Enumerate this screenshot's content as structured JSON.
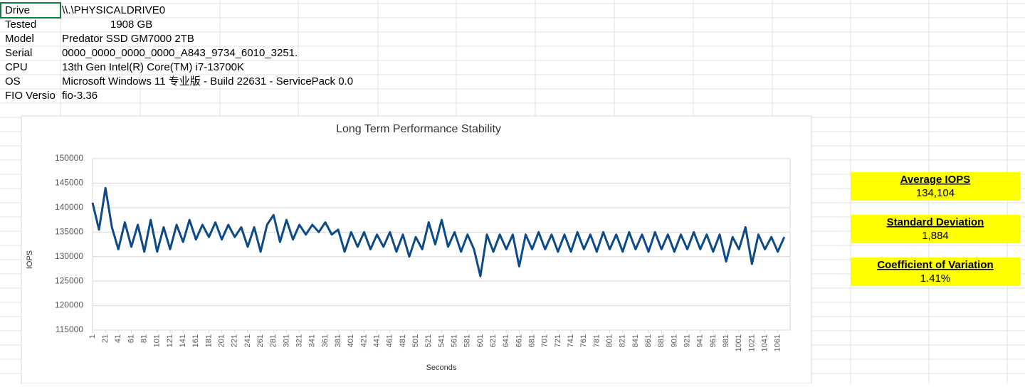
{
  "cells": [
    {
      "label": "Drive",
      "value": "\\\\.\\PHYSICALDRIVE0"
    },
    {
      "label": "Tested",
      "value": "1908 GB"
    },
    {
      "label": "Model",
      "value": "Predator SSD GM7000 2TB"
    },
    {
      "label": "Serial",
      "value": "0000_0000_0000_0000_A843_9734_6010_3251."
    },
    {
      "label": "CPU",
      "value": "13th Gen Intel(R) Core(TM) i7-13700K"
    },
    {
      "label": "OS",
      "value": "Microsoft Windows 11 专业版 - Build 22631 - ServicePack 0.0"
    },
    {
      "label": "FIO Versio",
      "value": "fio-3.36"
    }
  ],
  "stats": [
    {
      "title": "Average IOPS",
      "value": "134,104"
    },
    {
      "title": "Standard Deviation",
      "value": "1,884"
    },
    {
      "title": "Coefficient of Variation",
      "value": "1.41%"
    }
  ],
  "chart_data": {
    "type": "line",
    "title": "Long Term Performance Stability",
    "x_label": "Seconds",
    "y_label": "IOPS",
    "color": "#0d4a8a",
    "grid": true,
    "xlim": [
      1,
      1080
    ],
    "ylim": [
      115000,
      150000
    ],
    "yticks": [
      115000,
      120000,
      125000,
      130000,
      135000,
      140000,
      145000,
      150000
    ],
    "xticks": [
      1,
      21,
      41,
      61,
      81,
      101,
      121,
      141,
      161,
      181,
      201,
      221,
      241,
      261,
      281,
      301,
      321,
      341,
      361,
      381,
      401,
      421,
      441,
      461,
      481,
      501,
      521,
      541,
      561,
      581,
      601,
      621,
      641,
      661,
      681,
      701,
      721,
      741,
      761,
      781,
      801,
      821,
      841,
      861,
      881,
      901,
      921,
      941,
      961,
      981,
      1001,
      1021,
      1041,
      1061
    ],
    "x": [
      1,
      11,
      21,
      31,
      41,
      51,
      61,
      71,
      81,
      91,
      101,
      111,
      121,
      131,
      141,
      151,
      161,
      171,
      181,
      191,
      201,
      211,
      221,
      231,
      241,
      251,
      261,
      271,
      281,
      291,
      301,
      311,
      321,
      331,
      341,
      351,
      361,
      371,
      381,
      391,
      401,
      411,
      421,
      431,
      441,
      451,
      461,
      471,
      481,
      491,
      501,
      511,
      521,
      531,
      541,
      551,
      561,
      571,
      581,
      591,
      601,
      611,
      621,
      631,
      641,
      651,
      661,
      671,
      681,
      691,
      701,
      711,
      721,
      731,
      741,
      751,
      761,
      771,
      781,
      791,
      801,
      811,
      821,
      831,
      841,
      851,
      861,
      871,
      881,
      891,
      901,
      911,
      921,
      931,
      941,
      951,
      961,
      971,
      981,
      991,
      1001,
      1011,
      1021,
      1031,
      1041,
      1051,
      1061,
      1071
    ],
    "values": [
      141000,
      135500,
      144000,
      136000,
      131500,
      137000,
      132000,
      136500,
      131000,
      137500,
      131000,
      136000,
      131500,
      136500,
      133000,
      137500,
      133500,
      136500,
      134000,
      137000,
      133500,
      136500,
      134000,
      136000,
      132000,
      136000,
      131000,
      136500,
      138500,
      133000,
      137500,
      133500,
      136500,
      134500,
      136500,
      135000,
      137000,
      134500,
      135500,
      131000,
      135000,
      132000,
      135000,
      131500,
      134500,
      132000,
      135000,
      131000,
      134500,
      130000,
      134000,
      131500,
      137000,
      132500,
      137500,
      132000,
      135000,
      131000,
      134500,
      131500,
      126000,
      134500,
      131000,
      134500,
      131500,
      134500,
      128000,
      134500,
      131500,
      135000,
      131500,
      134500,
      131000,
      134500,
      131000,
      135000,
      131500,
      134500,
      131000,
      135000,
      131500,
      134500,
      131000,
      135000,
      131500,
      134500,
      131000,
      135000,
      131500,
      134500,
      131000,
      134500,
      131500,
      135000,
      131500,
      134500,
      131000,
      134500,
      129000,
      134000,
      131500,
      136000,
      128500,
      134500,
      131500,
      134000,
      131000,
      134000
    ]
  }
}
